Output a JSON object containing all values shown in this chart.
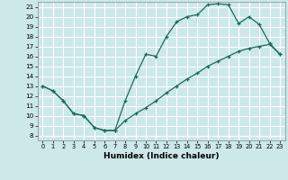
{
  "xlabel": "Humidex (Indice chaleur)",
  "bg_color": "#cce8e8",
  "grid_color": "#ffffff",
  "line_color": "#1a6b5a",
  "xlim": [
    -0.5,
    23.5
  ],
  "ylim": [
    7.5,
    21.5
  ],
  "xticks": [
    0,
    1,
    2,
    3,
    4,
    5,
    6,
    7,
    8,
    9,
    10,
    11,
    12,
    13,
    14,
    15,
    16,
    17,
    18,
    19,
    20,
    21,
    22,
    23
  ],
  "yticks": [
    8,
    9,
    10,
    11,
    12,
    13,
    14,
    15,
    16,
    17,
    18,
    19,
    20,
    21
  ],
  "curve1_x": [
    0,
    1,
    2,
    3,
    4,
    5,
    6,
    7,
    8,
    9,
    10,
    11,
    12,
    13,
    14,
    15,
    16,
    17,
    18,
    19,
    20,
    21,
    22,
    23
  ],
  "curve1_y": [
    13,
    12.5,
    11.5,
    10.2,
    10.0,
    8.8,
    8.5,
    8.5,
    11.5,
    14.0,
    16.2,
    16.0,
    18.0,
    19.5,
    20.0,
    20.2,
    21.2,
    21.3,
    21.2,
    19.3,
    20.0,
    19.2,
    17.3,
    16.2
  ],
  "curve2_x": [
    0,
    1,
    2,
    3,
    4,
    5,
    6,
    7,
    8,
    9,
    10,
    11,
    12,
    13,
    14,
    15,
    16,
    17,
    18,
    19,
    20,
    21,
    22,
    23
  ],
  "curve2_y": [
    13.0,
    12.5,
    11.5,
    10.2,
    10.0,
    8.8,
    8.5,
    8.5,
    9.5,
    10.2,
    10.8,
    11.5,
    12.3,
    13.0,
    13.7,
    14.3,
    15.0,
    15.5,
    16.0,
    16.5,
    16.8,
    17.0,
    17.2,
    16.2
  ]
}
